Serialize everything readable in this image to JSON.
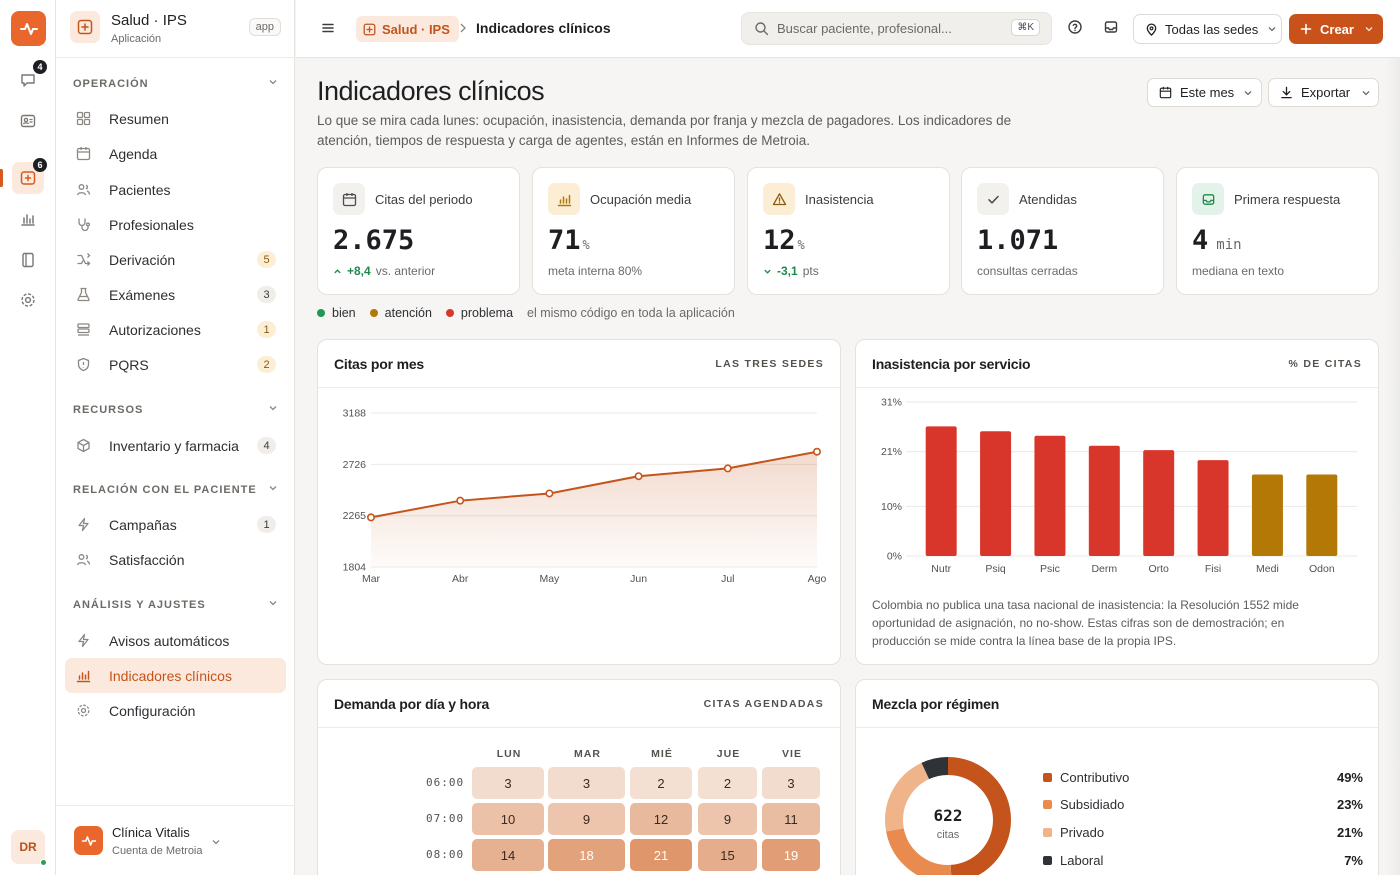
{
  "rail": {
    "badges": {
      "messages": "4",
      "clinic": "6"
    },
    "avatar": "DR"
  },
  "sidebar": {
    "app_title": "Salud · IPS",
    "app_sub": "Aplicación",
    "app_pill": "app",
    "sections": [
      {
        "label": "OPERACIÓN"
      },
      {
        "label": "RECURSOS"
      },
      {
        "label": "RELACIÓN CON EL PACIENTE"
      },
      {
        "label": "ANÁLISIS Y AJUSTES"
      }
    ],
    "items": [
      {
        "label": "Resumen",
        "icon": "grid-icon"
      },
      {
        "label": "Agenda",
        "icon": "calendar-icon"
      },
      {
        "label": "Pacientes",
        "icon": "users-icon"
      },
      {
        "label": "Profesionales",
        "icon": "stethoscope-icon"
      },
      {
        "label": "Derivación",
        "icon": "route-icon",
        "count": "5"
      },
      {
        "label": "Exámenes",
        "icon": "flask-icon",
        "count": "3"
      },
      {
        "label": "Autorizaciones",
        "icon": "stack-icon",
        "count": "1"
      },
      {
        "label": "PQRS",
        "icon": "shield-icon",
        "count": "2"
      },
      {
        "label": "Inventario y farmacia",
        "icon": "box-icon",
        "count": "4"
      },
      {
        "label": "Campañas",
        "icon": "bolt-icon",
        "count": "1"
      },
      {
        "label": "Satisfacción",
        "icon": "users-icon"
      },
      {
        "label": "Avisos automáticos",
        "icon": "bolt-icon"
      },
      {
        "label": "Indicadores clínicos",
        "icon": "chart-icon"
      },
      {
        "label": "Configuración",
        "icon": "gear-icon"
      }
    ],
    "footer": {
      "title": "Clínica Vitalis",
      "sub": "Cuenta de Metroia"
    }
  },
  "topbar": {
    "crumb_app": "Salud · IPS",
    "crumb_page": "Indicadores clínicos",
    "search_placeholder": "Buscar paciente, profesional...",
    "search_kbd": "⌘K",
    "sede": "Todas las sedes",
    "create": "Crear"
  },
  "page": {
    "title": "Indicadores clínicos",
    "description": "Lo que se mira cada lunes: ocupación, inasistencia, demanda por franja y mezcla de pagadores. Los indicadores de atención, tiempos de respuesta y carga de agentes, están en Informes de Metroia.",
    "period_button": "Este mes",
    "export_button": "Exportar"
  },
  "kpis": [
    {
      "label": "Citas del periodo",
      "value": "2.675",
      "unit": "",
      "delta": "+8,4",
      "delta_note": "vs. anterior",
      "icon": "calendar-icon",
      "color": "#f3f1ee"
    },
    {
      "label": "Ocupación media",
      "value": "71",
      "unit": "%",
      "note": "meta interna 80%",
      "icon": "chart-icon",
      "color": "#fbeed5"
    },
    {
      "label": "Inasistencia",
      "value": "12",
      "unit": "%",
      "delta": "-3,1",
      "delta_note": "pts",
      "icon": "warning-icon",
      "color": "#fbeed5"
    },
    {
      "label": "Atendidas",
      "value": "1.071",
      "unit": "",
      "note": "consultas cerradas",
      "icon": "check-icon",
      "color": "#f3f1ee"
    },
    {
      "label": "Primera respuesta",
      "value": "4",
      "unit": "min",
      "note": "mediana en texto",
      "icon": "inbox-icon",
      "color": "#e4f3e9"
    }
  ],
  "status_legend": {
    "good": "bien",
    "warn": "atención",
    "bad": "problema",
    "note": "el mismo código en toda la aplicación",
    "colors": {
      "good": "#1f9a52",
      "warn": "#b47807",
      "bad": "#d9362b"
    }
  },
  "cards": {
    "line": {
      "title": "Citas por mes",
      "tag": "LAS TRES SEDES"
    },
    "bars": {
      "title": "Inasistencia por servicio",
      "tag": "% DE CITAS",
      "footnote": "Colombia no publica una tasa nacional de inasistencia: la Resolución 1552 mide oportunidad de asignación, no no-show. Estas cifras son de demostración; en producción se mide contra la línea base de la propia IPS."
    },
    "heatmap": {
      "title": "Demanda por día y hora",
      "tag": "CITAS AGENDADAS",
      "days": [
        "LUN",
        "MAR",
        "MIÉ",
        "JUE",
        "VIE"
      ],
      "rows": [
        {
          "hour": "06:00",
          "values": [
            "3",
            "3",
            "2",
            "2",
            "3"
          ]
        },
        {
          "hour": "07:00",
          "values": [
            "10",
            "9",
            "12",
            "9",
            "11"
          ]
        },
        {
          "hour": "08:00",
          "values": [
            "14",
            "18",
            "21",
            "15",
            "19"
          ]
        }
      ]
    },
    "mix": {
      "title": "Mezcla por régimen",
      "total": "622",
      "total_label": "citas",
      "items": [
        {
          "label": "Contributivo",
          "pct": "49%",
          "color": "#c4541b"
        },
        {
          "label": "Subsidiado",
          "pct": "23%",
          "color": "#e98a4e"
        },
        {
          "label": "Privado",
          "pct": "21%",
          "color": "#efb48a"
        },
        {
          "label": "Laboral",
          "pct": "7%",
          "color": "#2f3338"
        }
      ]
    }
  },
  "chart_data": [
    {
      "type": "line",
      "title": "Citas por mes",
      "categories": [
        "Mar",
        "Abr",
        "May",
        "Jun",
        "Jul",
        "Ago"
      ],
      "series": [
        {
          "values": [
            2250,
            2400,
            2465,
            2620,
            2690,
            2840
          ]
        }
      ],
      "yticks": [
        "3188",
        "2726",
        "2265",
        "1804"
      ],
      "ylim": [
        1804,
        3188
      ],
      "color": "#c4541b",
      "grid": true
    },
    {
      "type": "bar",
      "title": "Inasistencia por servicio",
      "categories": [
        "Nutr",
        "Psiq",
        "Psic",
        "Derm",
        "Orto",
        "Fisi",
        "Medi",
        "Odon"
      ],
      "values": [
        26.1,
        25.1,
        24.2,
        22.2,
        21.3,
        19.3,
        16.4,
        16.4
      ],
      "status": [
        "bad",
        "bad",
        "bad",
        "bad",
        "bad",
        "bad",
        "warn",
        "warn"
      ],
      "yticks": [
        "31%",
        "21%",
        "10%",
        "0%"
      ],
      "ylim": [
        0,
        31
      ],
      "grid": true
    },
    {
      "type": "pie",
      "title": "Mezcla por régimen",
      "categories": [
        "Contributivo",
        "Subsidiado",
        "Privado",
        "Laboral"
      ],
      "values": [
        49,
        23,
        21,
        7
      ]
    }
  ]
}
